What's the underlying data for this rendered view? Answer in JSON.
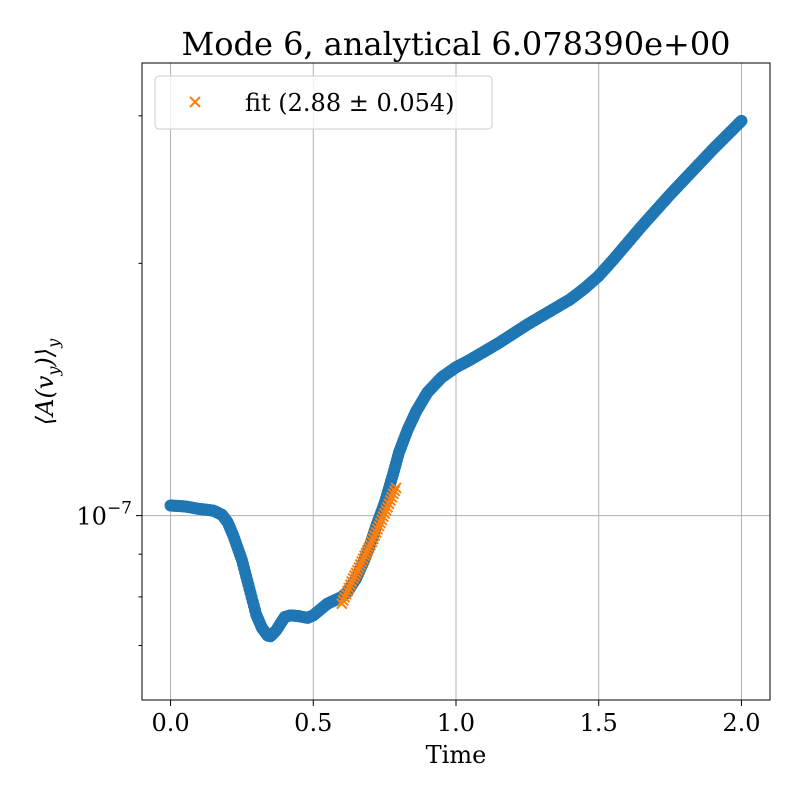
{
  "chart_data": {
    "type": "scatter",
    "title": "Mode 6, analytical 6.078390e+00",
    "xlabel": "Time",
    "ylabel": "⟨A(v_y)⟩_y",
    "ylabel_main": "⟨A(v",
    "ylabel_sub_inner": "y",
    "ylabel_close": ")⟩",
    "ylabel_sub_outer": "y",
    "yscale": "log",
    "xlim": [
      -0.1,
      2.1
    ],
    "ylim_log10": [
      -7.22,
      -6.46
    ],
    "grid": true,
    "legend_position": "top-left",
    "xticks": [
      {
        "value": 0.0,
        "label": "0.0"
      },
      {
        "value": 0.5,
        "label": "0.5"
      },
      {
        "value": 1.0,
        "label": "1.0"
      },
      {
        "value": 1.5,
        "label": "1.5"
      },
      {
        "value": 2.0,
        "label": "2.0"
      }
    ],
    "yticks_major": [
      {
        "log10": -7,
        "base": "10",
        "exponent": "−7"
      }
    ],
    "yticks_minor_log10": [
      -7.155,
      -7.097,
      -7.046,
      -6.699,
      -6.523
    ],
    "series": [
      {
        "name": "",
        "color": "#1f77b4",
        "marker": "circle",
        "t": [
          0.0,
          0.05,
          0.1,
          0.15,
          0.18,
          0.2,
          0.22,
          0.25,
          0.28,
          0.3,
          0.32,
          0.34,
          0.35,
          0.37,
          0.4,
          0.42,
          0.45,
          0.48,
          0.5,
          0.55,
          0.6,
          0.62,
          0.65,
          0.68,
          0.7,
          0.72,
          0.75,
          0.78,
          0.8,
          0.83,
          0.86,
          0.9,
          0.95,
          1.0,
          1.05,
          1.1,
          1.15,
          1.2,
          1.25,
          1.3,
          1.35,
          1.4,
          1.45,
          1.5,
          1.55,
          1.6,
          1.65,
          1.7,
          1.75,
          1.8,
          1.85,
          1.9,
          1.95,
          2.0
        ],
        "log10y": [
          -6.988,
          -6.989,
          -6.992,
          -6.994,
          -6.999,
          -7.008,
          -7.024,
          -7.053,
          -7.092,
          -7.118,
          -7.134,
          -7.143,
          -7.144,
          -7.137,
          -7.121,
          -7.119,
          -7.12,
          -7.122,
          -7.119,
          -7.105,
          -7.097,
          -7.091,
          -7.075,
          -7.052,
          -7.034,
          -7.013,
          -6.985,
          -6.95,
          -6.925,
          -6.898,
          -6.876,
          -6.853,
          -6.835,
          -6.823,
          -6.814,
          -6.804,
          -6.794,
          -6.783,
          -6.772,
          -6.762,
          -6.752,
          -6.742,
          -6.729,
          -6.714,
          -6.695,
          -6.675,
          -6.655,
          -6.636,
          -6.617,
          -6.599,
          -6.581,
          -6.563,
          -6.546,
          -6.529
        ]
      },
      {
        "name": "fit (2.88 ± 0.054)",
        "color": "#ff7f0e",
        "marker": "x",
        "t": [
          0.6,
          0.62,
          0.64,
          0.66,
          0.68,
          0.7,
          0.72,
          0.74,
          0.76,
          0.78,
          0.79
        ],
        "log10y": [
          -7.105,
          -7.09,
          -7.075,
          -7.062,
          -7.048,
          -7.035,
          -7.02,
          -7.005,
          -6.99,
          -6.974,
          -6.967
        ]
      }
    ]
  }
}
